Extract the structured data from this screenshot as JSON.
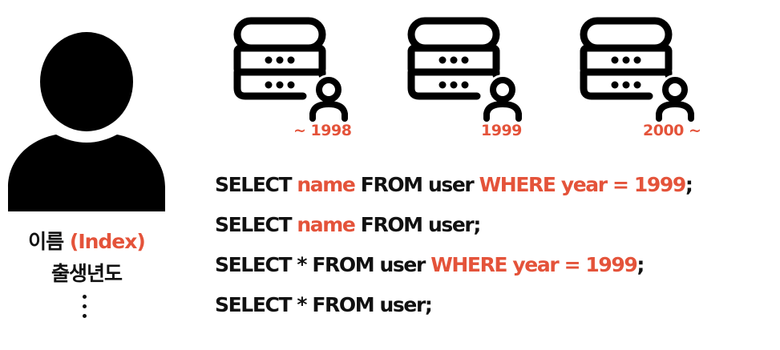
{
  "colors": {
    "accent": "#e4533a",
    "text": "#111111"
  },
  "icons": {
    "user": "person-silhouette-icon",
    "db": "database-user-icon"
  },
  "entity": {
    "attributes": [
      {
        "name": "이름",
        "note": "(Index)"
      },
      {
        "name": "출생년도"
      }
    ],
    "more": "⋮"
  },
  "databases": [
    {
      "label": "~ 1998"
    },
    {
      "label": "1999"
    },
    {
      "label": "2000 ~"
    }
  ],
  "queries": [
    {
      "parts": [
        {
          "t": "SELECT ",
          "hl": false
        },
        {
          "t": "name",
          "hl": true
        },
        {
          "t": " FROM user ",
          "hl": false
        },
        {
          "t": "WHERE year = 1999",
          "hl": true
        },
        {
          "t": ";",
          "hl": false
        }
      ]
    },
    {
      "parts": [
        {
          "t": "SELECT ",
          "hl": false
        },
        {
          "t": "name",
          "hl": true
        },
        {
          "t": " FROM user;",
          "hl": false
        }
      ]
    },
    {
      "parts": [
        {
          "t": "SELECT * FROM user ",
          "hl": false
        },
        {
          "t": "WHERE year = 1999",
          "hl": true
        },
        {
          "t": ";",
          "hl": false
        }
      ]
    },
    {
      "parts": [
        {
          "t": "SELECT * FROM user;",
          "hl": false
        }
      ]
    }
  ]
}
